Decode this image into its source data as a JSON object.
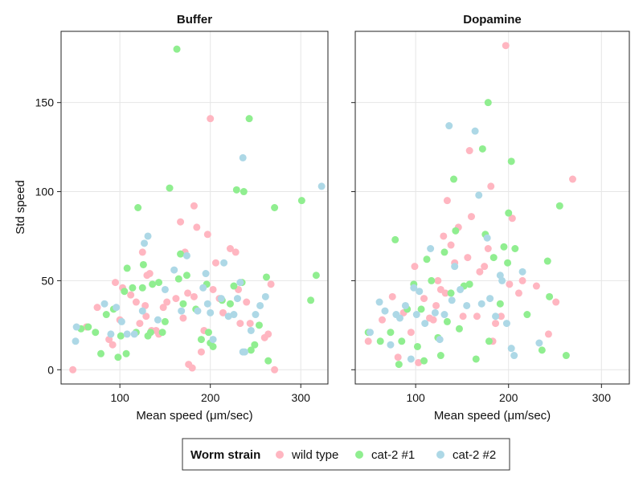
{
  "chart_data": {
    "type": "scatter",
    "ylabel": "Std speed",
    "yticks": [
      0,
      50,
      100,
      150
    ],
    "xticks": [
      100,
      200,
      300
    ],
    "xlim": [
      35,
      330
    ],
    "ylim": [
      -8,
      190
    ],
    "grid": true,
    "legend_position": "bottom",
    "legend": {
      "title": "Worm strain",
      "entries": [
        {
          "name": "wild type",
          "color": "#FFB6C1"
        },
        {
          "name": "cat-2 #1",
          "color": "#90EE90"
        },
        {
          "name": "cat-2 #2",
          "color": "#ADD8E6"
        }
      ]
    },
    "panels": [
      {
        "title": "Buffer",
        "xlabel": "Mean speed (μm/sec)",
        "series": [
          {
            "name": "wild type",
            "color": "#FFB6C1",
            "points": [
              [
                48,
                0
              ],
              [
                63,
                24
              ],
              [
                75,
                35
              ],
              [
                88,
                17
              ],
              [
                92,
                14
              ],
              [
                95,
                49
              ],
              [
                100,
                28
              ],
              [
                103,
                46
              ],
              [
                112,
                42
              ],
              [
                118,
                38
              ],
              [
                122,
                26
              ],
              [
                125,
                66
              ],
              [
                128,
                36
              ],
              [
                129,
                30
              ],
              [
                130,
                53
              ],
              [
                133,
                54
              ],
              [
                135,
                22
              ],
              [
                140,
                22
              ],
              [
                143,
                20
              ],
              [
                148,
                35
              ],
              [
                152,
                38
              ],
              [
                162,
                40
              ],
              [
                167,
                83
              ],
              [
                170,
                29
              ],
              [
                172,
                66
              ],
              [
                175,
                43
              ],
              [
                176,
                3
              ],
              [
                180,
                1
              ],
              [
                182,
                41
              ],
              [
                182,
                92
              ],
              [
                185,
                80
              ],
              [
                190,
                10
              ],
              [
                193,
                22
              ],
              [
                197,
                76
              ],
              [
                200,
                141
              ],
              [
                203,
                45
              ],
              [
                206,
                60
              ],
              [
                210,
                40
              ],
              [
                214,
                32
              ],
              [
                222,
                68
              ],
              [
                228,
                66
              ],
              [
                231,
                45
              ],
              [
                233,
                26
              ],
              [
                240,
                38
              ],
              [
                244,
                26
              ],
              [
                260,
                18
              ],
              [
                264,
                20
              ],
              [
                267,
                48
              ],
              [
                271,
                0
              ]
            ]
          },
          {
            "name": "cat-2 #1",
            "color": "#90EE90",
            "points": [
              [
                57,
                23
              ],
              [
                65,
                24
              ],
              [
                73,
                21
              ],
              [
                79,
                9
              ],
              [
                85,
                31
              ],
              [
                93,
                34
              ],
              [
                98,
                7
              ],
              [
                101,
                19
              ],
              [
                105,
                44
              ],
              [
                107,
                9
              ],
              [
                108,
                57
              ],
              [
                114,
                46
              ],
              [
                118,
                21
              ],
              [
                120,
                91
              ],
              [
                125,
                46
              ],
              [
                126,
                59
              ],
              [
                131,
                19
              ],
              [
                134,
                21
              ],
              [
                136,
                48
              ],
              [
                143,
                49
              ],
              [
                147,
                21
              ],
              [
                150,
                27
              ],
              [
                155,
                102
              ],
              [
                163,
                180
              ],
              [
                165,
                51
              ],
              [
                167,
                65
              ],
              [
                170,
                37
              ],
              [
                174,
                53
              ],
              [
                184,
                34
              ],
              [
                190,
                17
              ],
              [
                196,
                48
              ],
              [
                198,
                21
              ],
              [
                200,
                15
              ],
              [
                203,
                13
              ],
              [
                213,
                39
              ],
              [
                222,
                37
              ],
              [
                226,
                47
              ],
              [
                229,
                101
              ],
              [
                235,
                49
              ],
              [
                237,
                100
              ],
              [
                243,
                141
              ],
              [
                245,
                11
              ],
              [
                249,
                14
              ],
              [
                254,
                25
              ],
              [
                262,
                52
              ],
              [
                264,
                5
              ],
              [
                271,
                91
              ],
              [
                301,
                95
              ],
              [
                311,
                39
              ],
              [
                317,
                53
              ]
            ]
          },
          {
            "name": "cat-2 #2",
            "color": "#ADD8E6",
            "points": [
              [
                51,
                16
              ],
              [
                52,
                24
              ],
              [
                83,
                37
              ],
              [
                90,
                20
              ],
              [
                96,
                35
              ],
              [
                102,
                27
              ],
              [
                108,
                20
              ],
              [
                116,
                20
              ],
              [
                125,
                33
              ],
              [
                127,
                71
              ],
              [
                131,
                75
              ],
              [
                142,
                28
              ],
              [
                150,
                45
              ],
              [
                160,
                56
              ],
              [
                168,
                33
              ],
              [
                174,
                64
              ],
              [
                186,
                33
              ],
              [
                192,
                46
              ],
              [
                195,
                54
              ],
              [
                197,
                37
              ],
              [
                200,
                32
              ],
              [
                203,
                17
              ],
              [
                212,
                40
              ],
              [
                215,
                60
              ],
              [
                220,
                30
              ],
              [
                226,
                31
              ],
              [
                230,
                40
              ],
              [
                233,
                49
              ],
              [
                236,
                119
              ],
              [
                236,
                10
              ],
              [
                238,
                10
              ],
              [
                245,
                22
              ],
              [
                250,
                31
              ],
              [
                255,
                36
              ],
              [
                261,
                41
              ],
              [
                323,
                103
              ]
            ]
          }
        ]
      },
      {
        "title": "Dopamine",
        "xlabel": "Mean speed (μm/sec)",
        "series": [
          {
            "name": "wild type",
            "color": "#FFB6C1",
            "points": [
              [
                49,
                16
              ],
              [
                64,
                28
              ],
              [
                75,
                41
              ],
              [
                81,
                7
              ],
              [
                87,
                32
              ],
              [
                95,
                21
              ],
              [
                99,
                58
              ],
              [
                103,
                4
              ],
              [
                109,
                40
              ],
              [
                115,
                29
              ],
              [
                119,
                28
              ],
              [
                122,
                36
              ],
              [
                124,
                50
              ],
              [
                127,
                45
              ],
              [
                130,
                75
              ],
              [
                132,
                43
              ],
              [
                134,
                95
              ],
              [
                138,
                70
              ],
              [
                142,
                60
              ],
              [
                146,
                80
              ],
              [
                151,
                30
              ],
              [
                156,
                63
              ],
              [
                158,
                123
              ],
              [
                160,
                86
              ],
              [
                166,
                30
              ],
              [
                169,
                55
              ],
              [
                174,
                58
              ],
              [
                178,
                68
              ],
              [
                181,
                103
              ],
              [
                183,
                16
              ],
              [
                186,
                26
              ],
              [
                192,
                30
              ],
              [
                197,
                182
              ],
              [
                201,
                48
              ],
              [
                204,
                85
              ],
              [
                211,
                43
              ],
              [
                215,
                50
              ],
              [
                230,
                47
              ],
              [
                243,
                20
              ],
              [
                251,
                38
              ],
              [
                269,
                107
              ]
            ]
          },
          {
            "name": "cat-2 #1",
            "color": "#90EE90",
            "points": [
              [
                49,
                21
              ],
              [
                62,
                16
              ],
              [
                73,
                21
              ],
              [
                78,
                73
              ],
              [
                82,
                3
              ],
              [
                85,
                16
              ],
              [
                91,
                34
              ],
              [
                98,
                48
              ],
              [
                102,
                13
              ],
              [
                106,
                34
              ],
              [
                109,
                5
              ],
              [
                112,
                62
              ],
              [
                117,
                50
              ],
              [
                124,
                18
              ],
              [
                127,
                8
              ],
              [
                131,
                66
              ],
              [
                134,
                27
              ],
              [
                138,
                43
              ],
              [
                141,
                107
              ],
              [
                143,
                78
              ],
              [
                147,
                23
              ],
              [
                152,
                47
              ],
              [
                158,
                48
              ],
              [
                165,
                6
              ],
              [
                172,
                124
              ],
              [
                175,
                76
              ],
              [
                178,
                150
              ],
              [
                179,
                16
              ],
              [
                184,
                63
              ],
              [
                191,
                37
              ],
              [
                195,
                69
              ],
              [
                199,
                60
              ],
              [
                200,
                88
              ],
              [
                203,
                117
              ],
              [
                207,
                68
              ],
              [
                220,
                31
              ],
              [
                236,
                11
              ],
              [
                242,
                61
              ],
              [
                244,
                41
              ],
              [
                255,
                92
              ],
              [
                262,
                8
              ]
            ]
          },
          {
            "name": "cat-2 #2",
            "color": "#ADD8E6",
            "points": [
              [
                51,
                21
              ],
              [
                61,
                38
              ],
              [
                67,
                33
              ],
              [
                73,
                14
              ],
              [
                79,
                31
              ],
              [
                83,
                29
              ],
              [
                89,
                36
              ],
              [
                95,
                6
              ],
              [
                98,
                46
              ],
              [
                101,
                31
              ],
              [
                104,
                44
              ],
              [
                110,
                26
              ],
              [
                116,
                68
              ],
              [
                121,
                32
              ],
              [
                126,
                17
              ],
              [
                131,
                31
              ],
              [
                136,
                137
              ],
              [
                139,
                39
              ],
              [
                142,
                58
              ],
              [
                148,
                45
              ],
              [
                155,
                36
              ],
              [
                164,
                134
              ],
              [
                168,
                98
              ],
              [
                171,
                37
              ],
              [
                177,
                74
              ],
              [
                180,
                40
              ],
              [
                186,
                30
              ],
              [
                191,
                53
              ],
              [
                193,
                50
              ],
              [
                198,
                26
              ],
              [
                203,
                12
              ],
              [
                206,
                8
              ],
              [
                215,
                55
              ],
              [
                233,
                15
              ]
            ]
          }
        ]
      }
    ]
  }
}
